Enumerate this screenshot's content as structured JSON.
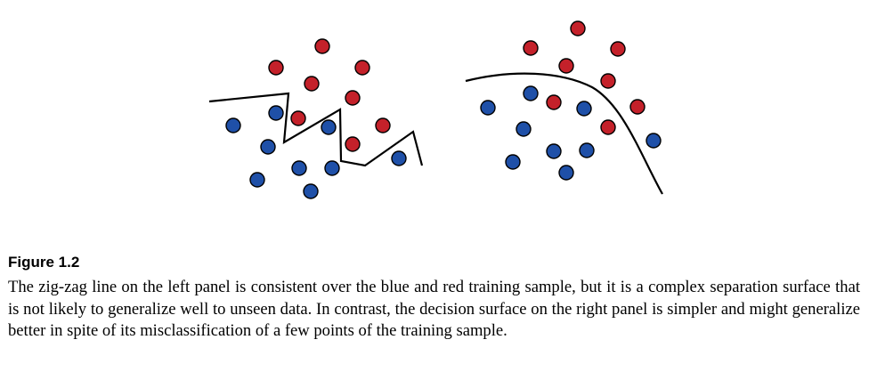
{
  "colors": {
    "blue_point": "#1f50a8",
    "red_point": "#c4212a",
    "line": "#000000"
  },
  "caption": {
    "label": "Figure 1.2",
    "text": "The zig-zag line on the left panel is consistent over the blue and red training sample, but it is a complex separation surface that is not likely to generalize well to unseen data. In contrast, the decision surface on the right panel is simpler and might generalize better in spite of its misclassification of a few points of the training sample."
  }
}
